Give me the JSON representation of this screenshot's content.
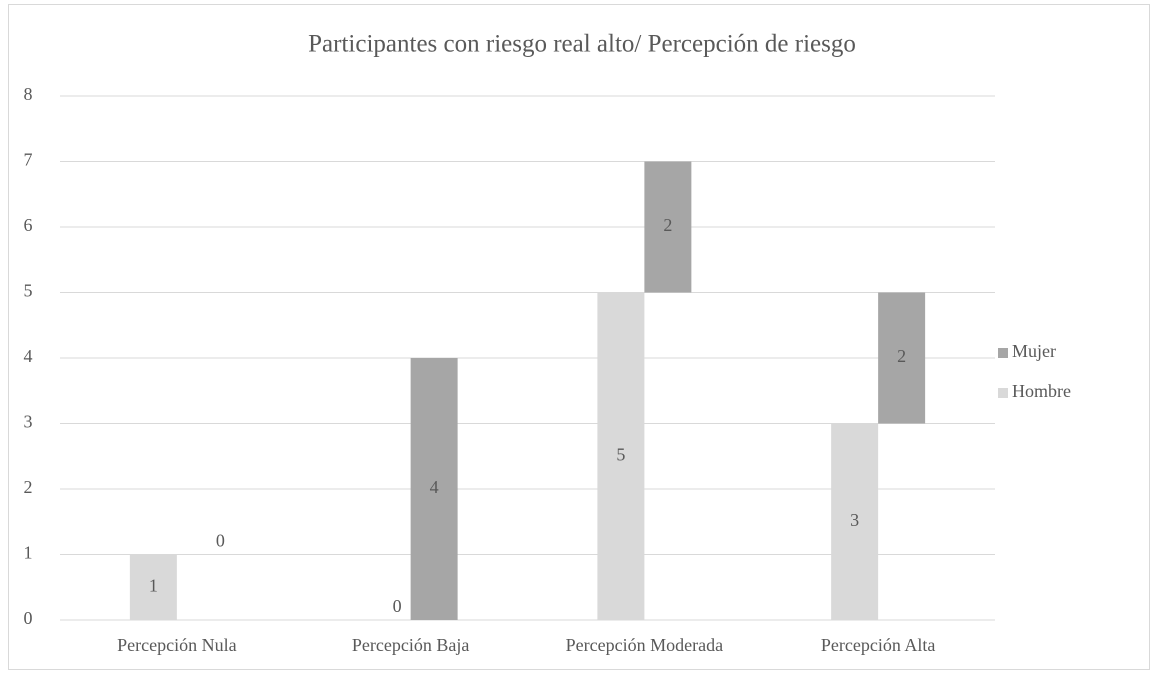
{
  "chart_data": {
    "type": "bar",
    "stacked": true,
    "title": "Participantes con riesgo real alto/ Percepción de riesgo",
    "categories": [
      "Percepción Nula",
      "Percepción Baja",
      "Percepción Moderada",
      "Percepción Alta"
    ],
    "series": [
      {
        "name": "Hombre",
        "color": "#d9d9d9",
        "values": [
          1,
          0,
          5,
          3
        ]
      },
      {
        "name": "Mujer",
        "color": "#a6a6a6",
        "values": [
          0,
          4,
          2,
          2
        ]
      }
    ],
    "ylim": [
      0,
      8
    ],
    "yticks": [
      0,
      1,
      2,
      3,
      4,
      5,
      6,
      7,
      8
    ],
    "grid": true,
    "legend": "right"
  }
}
